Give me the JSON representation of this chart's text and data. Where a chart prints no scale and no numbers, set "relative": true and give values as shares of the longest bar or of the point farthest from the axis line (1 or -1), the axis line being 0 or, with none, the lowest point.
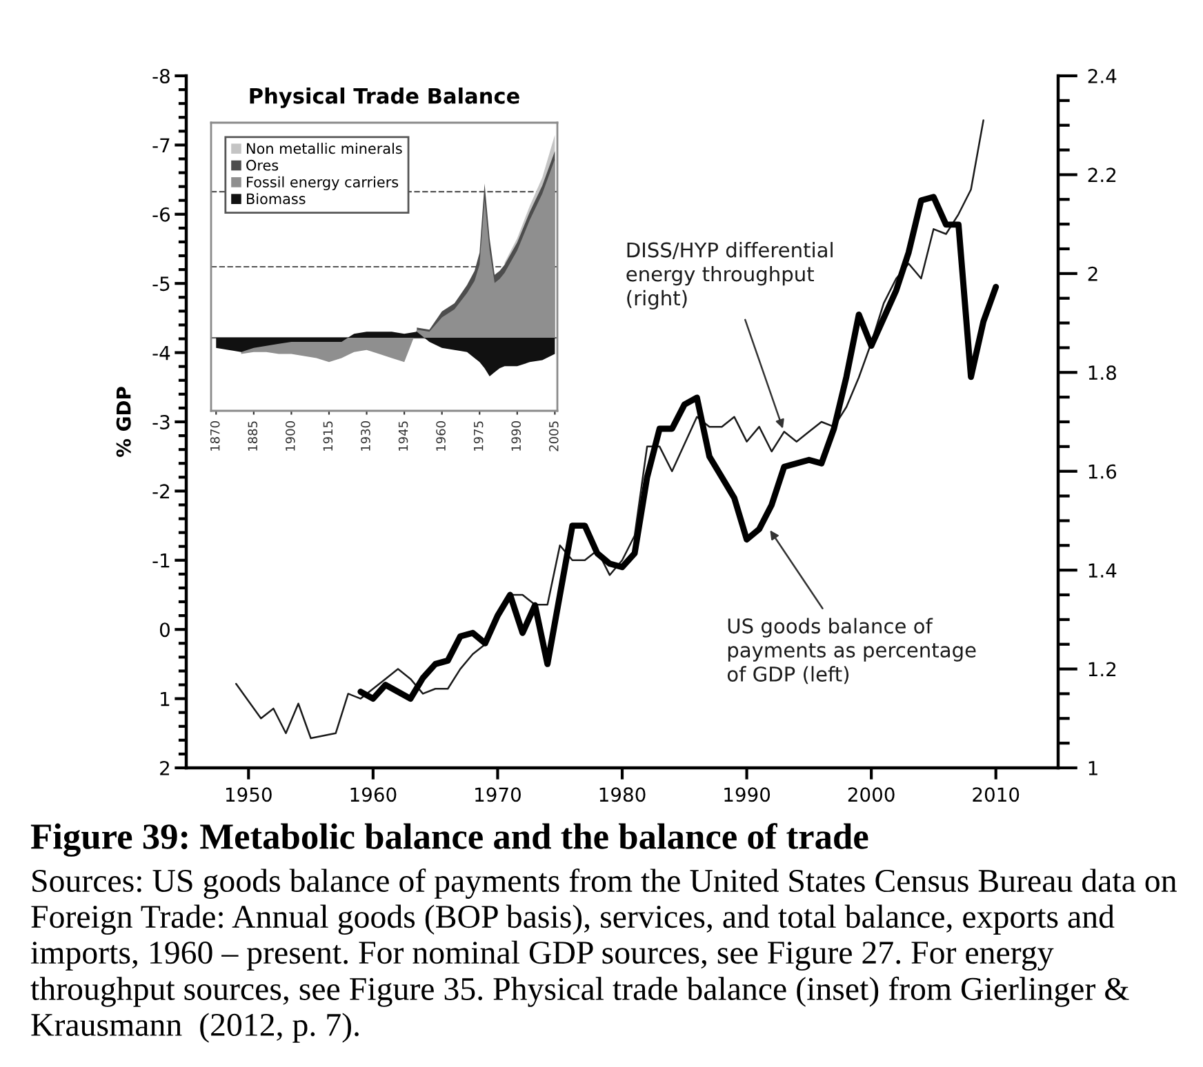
{
  "chart_data": [
    {
      "type": "line",
      "title": "Figure 39: Metabolic balance and the balance of trade",
      "ylabel": "% GDP",
      "xlim": [
        1945,
        2015
      ],
      "xticks": [
        1950,
        1960,
        1970,
        1980,
        1990,
        2000,
        2010
      ],
      "ylim": [
        2,
        -8
      ],
      "yticks": [
        -8,
        -7,
        -6,
        -5,
        -4,
        -3,
        -2,
        -1,
        0,
        1,
        2
      ],
      "y2lim": [
        1,
        2.4
      ],
      "y2ticks": [
        1,
        1.2,
        1.4,
        1.6,
        1.8,
        2,
        2.2,
        2.4
      ],
      "series": [
        {
          "axis": "y",
          "color": "#000000",
          "x": [
            1959,
            1960,
            1961,
            1962,
            1963,
            1964,
            1965,
            1966,
            1967,
            1968,
            1969,
            1970,
            1971,
            1972,
            1973,
            1974,
            1975,
            1976,
            1977,
            1978,
            1979,
            1980,
            1981,
            1982,
            1983,
            1984,
            1985,
            1986,
            1987,
            1988,
            1989,
            1990,
            1991,
            1992,
            1993,
            1994,
            1995,
            1996,
            1997,
            1998,
            1999,
            2000,
            2001,
            2002,
            2003,
            2004,
            2005,
            2006,
            2007,
            2008,
            2009,
            2010
          ],
          "values": [
            0.9,
            1.0,
            0.8,
            0.9,
            1.0,
            0.7,
            0.5,
            0.45,
            0.1,
            0.05,
            0.2,
            -0.2,
            -0.5,
            0.05,
            -0.35,
            0.5,
            -0.5,
            -1.5,
            -1.5,
            -1.1,
            -0.95,
            -0.9,
            -1.1,
            -2.2,
            -2.9,
            -2.9,
            -3.25,
            -3.35,
            -2.5,
            -2.2,
            -1.9,
            -1.3,
            -1.45,
            -1.8,
            -2.35,
            -2.4,
            -2.45,
            -2.4,
            -2.9,
            -3.65,
            -4.55,
            -4.1,
            -4.5,
            -4.9,
            -5.45,
            -6.2,
            -6.25,
            -5.85,
            -5.85,
            -3.65,
            -4.45,
            -4.95
          ]
        },
        {
          "axis": "y2",
          "color": "#1a1a1a",
          "x": [
            1949,
            1951,
            1952,
            1953,
            1954,
            1955,
            1957,
            1958,
            1959,
            1960,
            1961,
            1962,
            1963,
            1964,
            1965,
            1966,
            1967,
            1968,
            1969,
            1970,
            1971,
            1972,
            1973,
            1974,
            1975,
            1976,
            1977,
            1978,
            1979,
            1980,
            1981,
            1982,
            1983,
            1984,
            1986,
            1987,
            1988,
            1989,
            1990,
            1991,
            1992,
            1993,
            1994,
            1995,
            1996,
            1997,
            1998,
            1999,
            2000,
            2001,
            2002,
            2003,
            2004,
            2005,
            2006,
            2007,
            2008,
            2009
          ],
          "values": [
            1.17,
            1.1,
            1.12,
            1.07,
            1.13,
            1.06,
            1.07,
            1.15,
            1.14,
            1.16,
            1.18,
            1.2,
            1.18,
            1.15,
            1.16,
            1.16,
            1.2,
            1.23,
            1.25,
            1.3,
            1.35,
            1.35,
            1.33,
            1.33,
            1.45,
            1.42,
            1.42,
            1.44,
            1.39,
            1.42,
            1.47,
            1.65,
            1.65,
            1.6,
            1.71,
            1.69,
            1.69,
            1.71,
            1.66,
            1.69,
            1.64,
            1.68,
            1.66,
            1.68,
            1.7,
            1.69,
            1.73,
            1.79,
            1.86,
            1.94,
            1.99,
            2.02,
            1.99,
            2.09,
            2.08,
            2.12,
            2.17,
            2.31
          ]
        }
      ],
      "annotations": [
        {
          "text": "DISS/HYP differential energy throughput (right)",
          "x": 1993,
          "y": -2.85
        },
        {
          "text": "US goods balance of payments as percentage of GDP (left)",
          "x": 1991.7,
          "y": -1.48
        },
        "Sources: US goods balance of payments from the United States Census Bureau data on Foreign Trade: Annual goods (BOP basis), services, and total balance, exports and imports, 1960 – present. For nominal GDP sources, see Figure 27. For energy throughput sources, see Figure 35. Physical trade balance (inset) from Gierlinger & Krausmann  (2012, p. 7)."
      ]
    },
    {
      "type": "area",
      "title": "Physical Trade Balance",
      "relative": true,
      "legend": "top left",
      "tick_labels": "x",
      "xlim": [
        1868,
        2006
      ],
      "xticks": [
        1870,
        1885,
        1900,
        1915,
        1930,
        1945,
        1960,
        1975,
        1990,
        2005
      ],
      "series": [
        {
          "name": "Non metallic minerals",
          "color": "#c4c4c4",
          "x": [
            1985,
            1990,
            1995,
            2000,
            2005
          ],
          "values": [
            0.37,
            0.49,
            0.65,
            0.79,
            1.0
          ]
        },
        {
          "name": "Ores",
          "color": "#4d4d4d",
          "x": [
            1950,
            1955,
            1960,
            1965,
            1970,
            1973,
            1975,
            1977,
            1979,
            1981,
            1983,
            1985,
            1990,
            1995,
            2000,
            2005
          ],
          "values": [
            0.05,
            0.04,
            0.13,
            0.17,
            0.26,
            0.33,
            0.42,
            0.76,
            0.49,
            0.31,
            0.33,
            0.36,
            0.47,
            0.62,
            0.75,
            0.92
          ]
        },
        {
          "name": "Fossil energy carriers",
          "color": "#8f8f8f",
          "x": [
            1880,
            1885,
            1890,
            1895,
            1900,
            1905,
            1910,
            1915,
            1920,
            1925,
            1930,
            1935,
            1940,
            1945,
            1950,
            1955,
            1960,
            1965,
            1970,
            1973,
            1975,
            1977,
            1979,
            1981,
            1983,
            1985,
            1990,
            1995,
            2000,
            2005
          ],
          "values": [
            -0.08,
            -0.07,
            -0.07,
            -0.08,
            -0.08,
            -0.09,
            -0.1,
            -0.12,
            -0.1,
            -0.07,
            -0.06,
            -0.08,
            -0.1,
            -0.12,
            0.04,
            0.03,
            0.1,
            0.14,
            0.22,
            0.28,
            0.36,
            0.68,
            0.43,
            0.27,
            0.29,
            0.32,
            0.43,
            0.58,
            0.71,
            0.88
          ]
        },
        {
          "name": "Biomass",
          "color": "#111111",
          "x": [
            1870,
            1875,
            1880,
            1885,
            1890,
            1895,
            1900,
            1905,
            1910,
            1915,
            1920,
            1925,
            1930,
            1935,
            1940,
            1945,
            1950,
            1955,
            1960,
            1965,
            1970,
            1973,
            1975,
            1977,
            1979,
            1981,
            1983,
            1985,
            1990,
            1995,
            2000,
            2005
          ],
          "values": [
            -0.05,
            -0.06,
            -0.07,
            -0.05,
            -0.04,
            -0.03,
            -0.02,
            -0.02,
            -0.02,
            -0.02,
            -0.02,
            0.02,
            0.03,
            0.03,
            0.03,
            0.02,
            0.03,
            -0.02,
            -0.05,
            -0.06,
            -0.07,
            -0.1,
            -0.12,
            -0.15,
            -0.19,
            -0.17,
            -0.15,
            -0.14,
            -0.14,
            -0.12,
            -0.11,
            -0.08
          ]
        }
      ],
      "ref_lines": [
        {
          "axis": "y",
          "value": 0,
          "color": "#6a6a6a"
        },
        {
          "axis": "y",
          "value": 0.72,
          "color": "#555555",
          "line_style": "dashed"
        },
        {
          "axis": "y",
          "value": 0.35,
          "color": "#555555",
          "line_style": "dashed"
        }
      ]
    }
  ]
}
